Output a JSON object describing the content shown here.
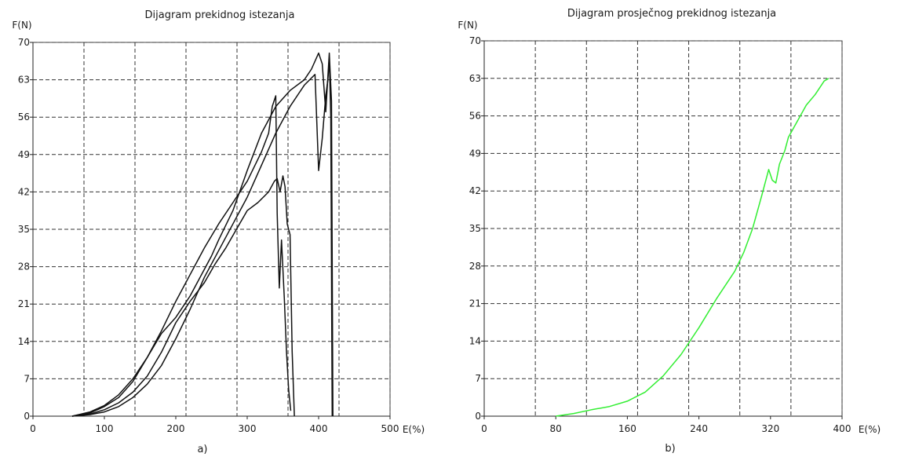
{
  "chart_data": [
    {
      "type": "line",
      "title": "Dijagram prekidnog istezanja",
      "ylabel": "F(N)",
      "xlabel": "E(%)",
      "caption": "a)",
      "xlim": [
        0,
        500
      ],
      "ylim": [
        0,
        70
      ],
      "xticks": [
        "0",
        "100",
        "200",
        "300",
        "400",
        "500"
      ],
      "yticks": [
        "0",
        "7",
        "14",
        "21",
        "28",
        "35",
        "42",
        "49",
        "56",
        "63",
        "70"
      ],
      "grid": true,
      "color": "#111111",
      "series": [
        {
          "x": [
            55,
            80,
            100,
            120,
            140,
            160,
            180,
            200,
            220,
            240,
            255,
            270,
            285,
            300,
            315,
            330,
            338,
            342,
            346,
            350,
            353,
            356,
            360,
            363,
            366
          ],
          "y": [
            0,
            0.4,
            1.2,
            2.5,
            4.5,
            7.5,
            12,
            17.5,
            21.5,
            25,
            28.5,
            31.5,
            35,
            38.5,
            40,
            42,
            44,
            44.5,
            42,
            45,
            43,
            36,
            34,
            12,
            0
          ]
        },
        {
          "x": [
            55,
            80,
            100,
            120,
            140,
            160,
            180,
            200,
            220,
            240,
            260,
            280,
            300,
            320,
            330,
            335,
            340,
            342,
            345,
            348,
            352,
            355,
            358,
            361
          ],
          "y": [
            0,
            0.6,
            1.8,
            3.5,
            6.5,
            11,
            16,
            21.5,
            26.5,
            31.5,
            36,
            40,
            44,
            49.5,
            53,
            58,
            60,
            38,
            24,
            33,
            22,
            12,
            5,
            1
          ]
        },
        {
          "x": [
            55,
            80,
            100,
            120,
            140,
            160,
            180,
            200,
            220,
            240,
            260,
            280,
            300,
            320,
            340,
            360,
            380,
            395,
            400,
            405,
            410,
            413,
            415,
            417,
            419
          ],
          "y": [
            0,
            0.3,
            0.8,
            1.8,
            3.5,
            6,
            9.5,
            14.5,
            20,
            26,
            31,
            36,
            41,
            47,
            53,
            58,
            62,
            64,
            46,
            52,
            60,
            63,
            67,
            56,
            0
          ]
        },
        {
          "x": [
            55,
            80,
            100,
            120,
            140,
            160,
            180,
            200,
            210,
            220,
            230,
            240,
            250,
            260,
            280,
            300,
            320,
            340,
            360,
            380,
            390,
            400,
            405,
            410,
            415,
            418,
            420
          ],
          "y": [
            0,
            0.8,
            2,
            4,
            7,
            11,
            15.5,
            18.5,
            20.5,
            22.5,
            25,
            27.5,
            30,
            33,
            38.5,
            46,
            53,
            58,
            61,
            63,
            65,
            68,
            66,
            57,
            68,
            59,
            0
          ]
        }
      ]
    },
    {
      "type": "line",
      "title": "Dijagram prosječnog prekidnog istezanja",
      "ylabel": "F(N)",
      "xlabel": "E(%)",
      "caption": "b)",
      "xlim": [
        0,
        400
      ],
      "ylim": [
        0,
        70
      ],
      "xticks": [
        "0",
        "80",
        "160",
        "240",
        "320",
        "400"
      ],
      "yticks": [
        "0",
        "7",
        "14",
        "21",
        "28",
        "35",
        "42",
        "49",
        "56",
        "63",
        "70"
      ],
      "grid": true,
      "color": "#33ee33",
      "series": [
        {
          "x": [
            80,
            100,
            120,
            140,
            160,
            180,
            200,
            220,
            240,
            260,
            280,
            290,
            300,
            310,
            318,
            322,
            326,
            330,
            336,
            340,
            350,
            360,
            370,
            380,
            385
          ],
          "y": [
            0,
            0.5,
            1.2,
            1.8,
            2.8,
            4.5,
            7.5,
            11.5,
            16.5,
            22,
            27,
            30.5,
            35,
            41,
            46,
            44,
            43.5,
            47,
            49.5,
            52,
            55,
            58,
            60,
            62.5,
            63
          ]
        }
      ]
    }
  ]
}
